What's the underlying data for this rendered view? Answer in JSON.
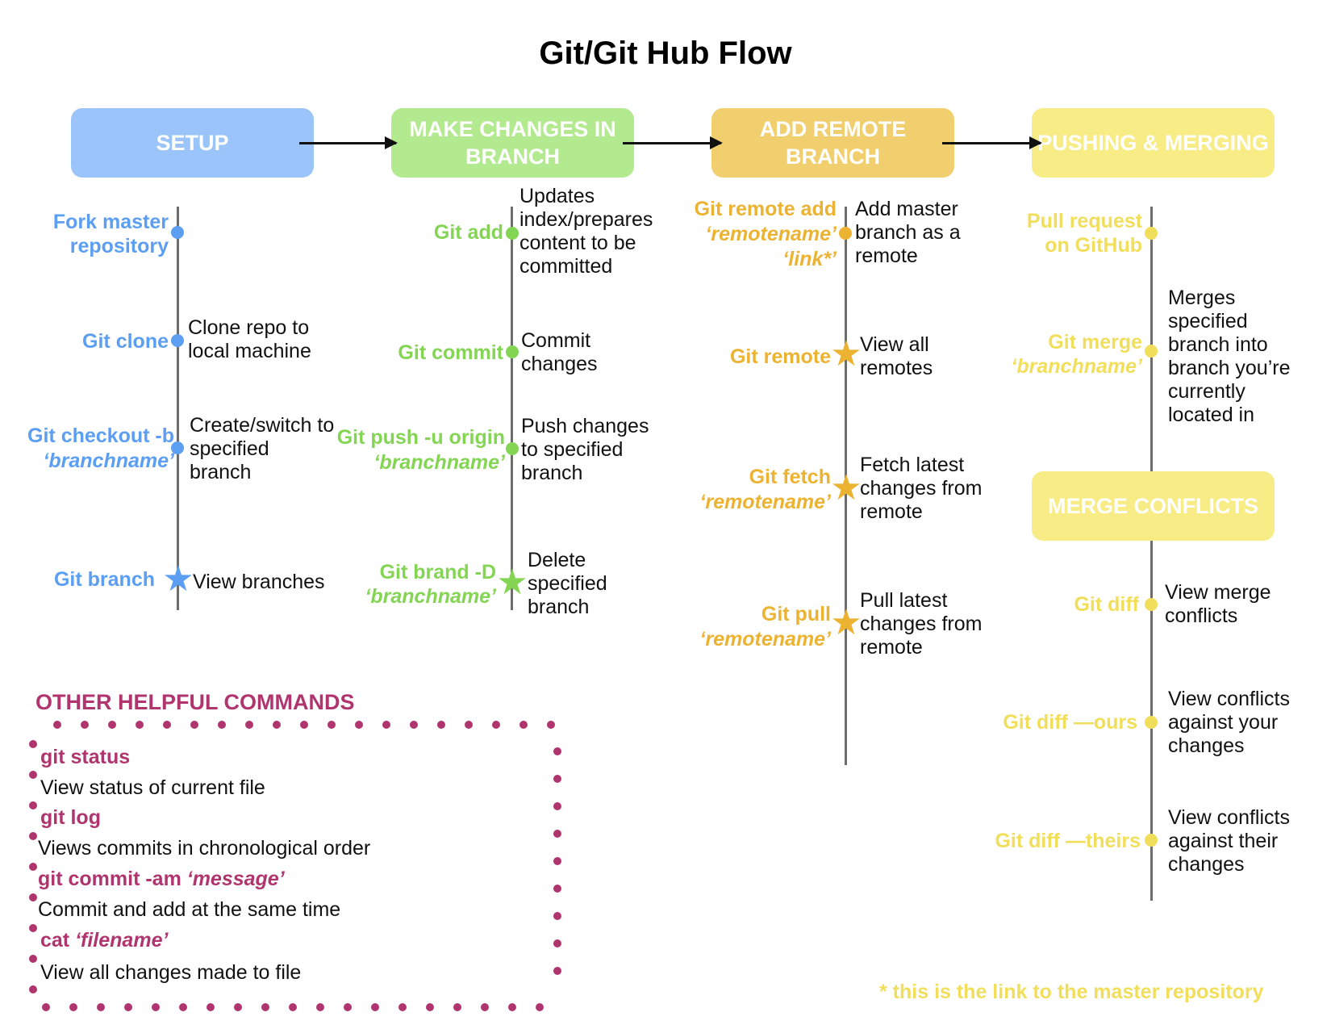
{
  "title": "Git/Git Hub Flow",
  "colors": {
    "setup": "#9bc4fa",
    "changes": "#b3e98f",
    "remote": "#f2cf6e",
    "pushing": "#f7ec86",
    "conflicts": "#f7ec86",
    "other": "#b0356f"
  },
  "headers": {
    "setup": "SETUP",
    "changes": "MAKE CHANGES IN BRANCH",
    "remote": "ADD REMOTE BRANCH",
    "pushing": "PUSHING & MERGING",
    "conflicts": "MERGE CONFLICTS"
  },
  "setup": [
    {
      "cmd": "Fork master repository",
      "desc": ""
    },
    {
      "cmd": "Git clone",
      "desc": "Clone repo to local machine"
    },
    {
      "cmd": "Git checkout -b",
      "arg": "‘branchname’",
      "desc": "Create/switch to specified branch"
    },
    {
      "cmd": "Git  branch",
      "desc": "View branches"
    }
  ],
  "changes": [
    {
      "cmd": "Git add",
      "desc": "Updates index/prepares content to be committed"
    },
    {
      "cmd": "Git commit",
      "desc": "Commit changes"
    },
    {
      "cmd": "Git push -u origin",
      "arg": "‘branchname’",
      "desc": "Push changes to specified branch"
    },
    {
      "cmd": "Git brand -D",
      "arg": "‘branchname’",
      "desc": "Delete specified branch"
    }
  ],
  "remote": [
    {
      "cmd": "Git remote add",
      "arg": "‘remotename’",
      "arg2": "‘link*’",
      "desc": "Add master branch as a remote"
    },
    {
      "cmd": "Git remote",
      "desc": "View all remotes"
    },
    {
      "cmd": "Git fetch",
      "arg": "‘remotename’",
      "desc": "Fetch latest changes from remote"
    },
    {
      "cmd": "Git pull",
      "arg": "‘remotename’",
      "desc": "Pull latest changes from remote"
    }
  ],
  "pushing": [
    {
      "cmd": "Pull request on GitHub",
      "desc": ""
    },
    {
      "cmd": "Git merge",
      "arg": "‘branchname’",
      "desc": "Merges specified branch into branch you’re currently located in"
    }
  ],
  "conflicts": [
    {
      "cmd": "Git diff",
      "desc": "View merge conflicts"
    },
    {
      "cmd": "Git diff —ours",
      "desc": "View conflicts against your changes"
    },
    {
      "cmd": "Git diff —theirs",
      "desc": "View conflicts against their changes"
    }
  ],
  "other": {
    "title": "OTHER HELPFUL COMMANDS",
    "items": [
      {
        "cmd": "git status",
        "desc": "View status of current file"
      },
      {
        "cmd": "git log",
        "desc": "Views commits in chronological order"
      },
      {
        "cmd": "git commit -am",
        "arg": "‘message’",
        "desc": "Commit and add at the same time"
      },
      {
        "cmd": "cat",
        "arg": "‘filename’",
        "desc": "View all changes made to file"
      }
    ]
  },
  "footnote": "* this is the link to the master repository"
}
